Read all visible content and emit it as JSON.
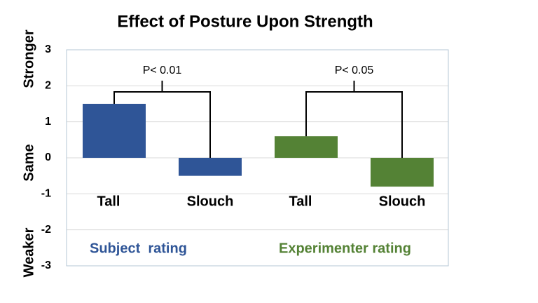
{
  "chart_data": {
    "type": "bar",
    "title": "Effect of Posture Upon Strength",
    "y_labels": [
      "Stronger",
      "Same",
      "Weaker"
    ],
    "categories": [
      "Tall",
      "Slouch"
    ],
    "series": [
      {
        "name": "Subject  rating",
        "color": "#2f5597",
        "values": [
          1.5,
          -0.5
        ],
        "annotation": "P< 0.01"
      },
      {
        "name": "Experimenter rating",
        "color": "#548235",
        "values": [
          0.6,
          -0.8
        ],
        "annotation": "P< 0.05"
      }
    ],
    "ylim": [
      -3,
      3
    ],
    "yticks": [
      -3,
      -2,
      -1,
      0,
      1,
      2,
      3
    ],
    "grid": true
  }
}
